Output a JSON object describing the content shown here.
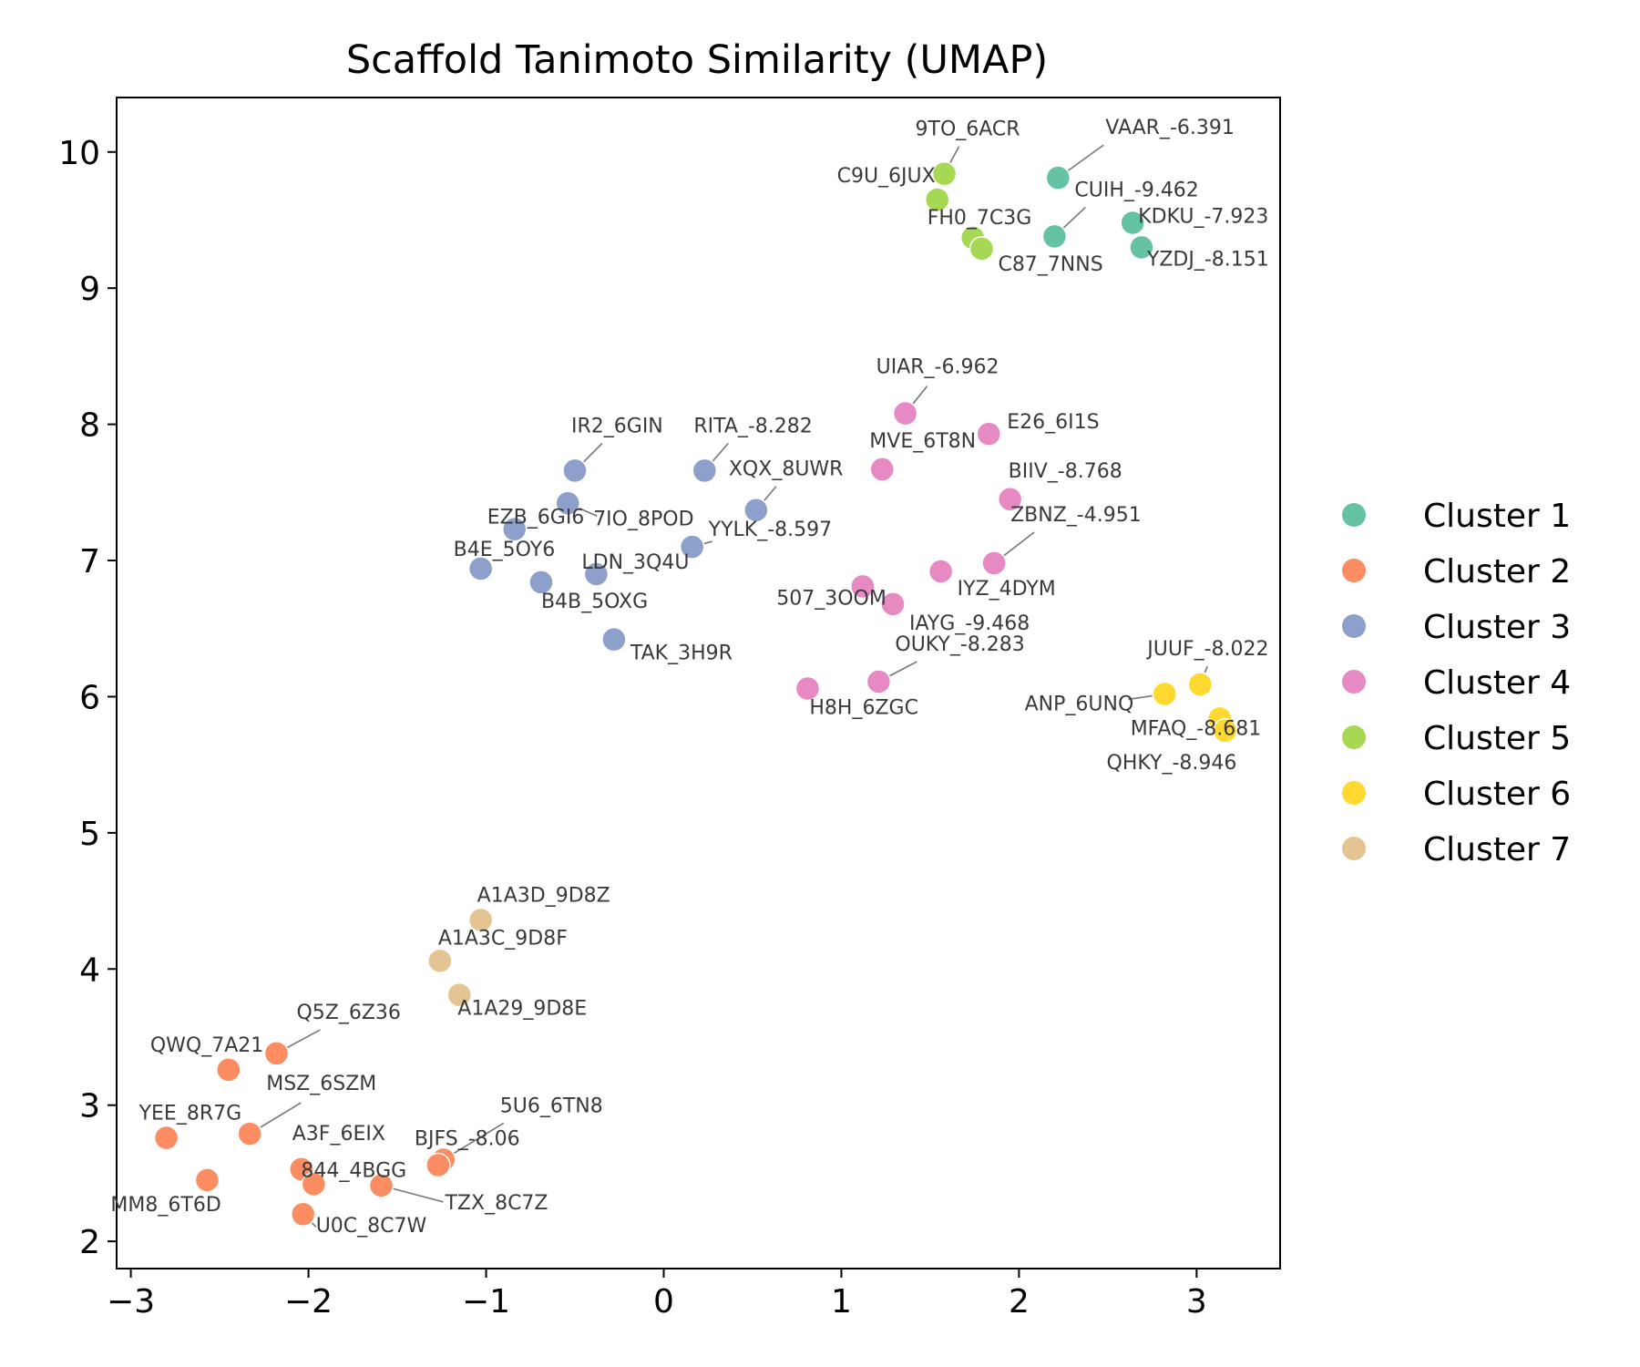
{
  "chart_data": {
    "type": "scatter",
    "title": "Scaffold Tanimoto Similarity (UMAP)",
    "xlabel": "",
    "ylabel": "",
    "xlim": [
      -3.08,
      3.47
    ],
    "ylim": [
      1.8,
      10.4
    ],
    "xticks": [
      -3,
      -2,
      -1,
      0,
      1,
      2,
      3
    ],
    "xtick_labels": [
      "−3",
      "−2",
      "−1",
      "0",
      "1",
      "2",
      "3"
    ],
    "yticks": [
      2,
      3,
      4,
      5,
      6,
      7,
      8,
      9,
      10
    ],
    "ytick_labels": [
      "2",
      "3",
      "4",
      "5",
      "6",
      "7",
      "8",
      "9",
      "10"
    ],
    "grid": false,
    "legend_position": "outside-right",
    "series": [
      {
        "name": "Cluster 1",
        "color": "#66c2a5",
        "points": [
          {
            "x": 2.22,
            "y": 9.81,
            "label": "VAAR_-6.391"
          },
          {
            "x": 2.2,
            "y": 9.38,
            "label": "CUIH_-9.462"
          },
          {
            "x": 2.64,
            "y": 9.48,
            "label": "KDKU_-7.923"
          },
          {
            "x": 2.69,
            "y": 9.3,
            "label": "YZDJ_-8.151"
          }
        ]
      },
      {
        "name": "Cluster 2",
        "color": "#fc8d62",
        "points": [
          {
            "x": -2.18,
            "y": 3.38,
            "label": "Q5Z_6Z36"
          },
          {
            "x": -2.45,
            "y": 3.26,
            "label": "QWQ_7A21"
          },
          {
            "x": -2.33,
            "y": 2.79,
            "label": "MSZ_6SZM"
          },
          {
            "x": -2.8,
            "y": 2.76,
            "label": "YEE_8R7G"
          },
          {
            "x": -2.57,
            "y": 2.45,
            "label": "MM8_6T6D"
          },
          {
            "x": -2.04,
            "y": 2.53,
            "label": "A3F_6EIX"
          },
          {
            "x": -1.97,
            "y": 2.42,
            "label": "844_4BGG"
          },
          {
            "x": -2.03,
            "y": 2.2,
            "label": "U0C_8C7W"
          },
          {
            "x": -1.59,
            "y": 2.41,
            "label": "TZX_8C7Z"
          },
          {
            "x": -1.24,
            "y": 2.6,
            "label": "5U6_6TN8"
          },
          {
            "x": -1.27,
            "y": 2.56,
            "label": "BJFS_-8.06"
          }
        ]
      },
      {
        "name": "Cluster 3",
        "color": "#8da0cb",
        "points": [
          {
            "x": -0.5,
            "y": 7.66,
            "label": "IR2_6GIN"
          },
          {
            "x": 0.23,
            "y": 7.66,
            "label": "RITA_-8.282"
          },
          {
            "x": -0.54,
            "y": 7.42,
            "label": "7IO_8POD"
          },
          {
            "x": 0.52,
            "y": 7.37,
            "label": "XQX_8UWR"
          },
          {
            "x": -0.84,
            "y": 7.23,
            "label": "EZB_6GI6"
          },
          {
            "x": 0.16,
            "y": 7.1,
            "label": "YYLK_-8.597"
          },
          {
            "x": -1.03,
            "y": 6.94,
            "label": "B4E_5OY6"
          },
          {
            "x": -0.38,
            "y": 6.9,
            "label": "LDN_3Q4U"
          },
          {
            "x": -0.69,
            "y": 6.84,
            "label": "B4B_5OXG"
          },
          {
            "x": -0.28,
            "y": 6.42,
            "label": "TAK_3H9R"
          }
        ]
      },
      {
        "name": "Cluster 4",
        "color": "#e78ac3",
        "points": [
          {
            "x": 1.36,
            "y": 8.08,
            "label": "UIAR_-6.962"
          },
          {
            "x": 1.83,
            "y": 7.93,
            "label": "E26_6I1S"
          },
          {
            "x": 1.23,
            "y": 7.67,
            "label": "MVE_6T8N"
          },
          {
            "x": 1.95,
            "y": 7.45,
            "label": "BIIV_-8.768"
          },
          {
            "x": 1.86,
            "y": 6.98,
            "label": "ZBNZ_-4.951"
          },
          {
            "x": 1.56,
            "y": 6.92,
            "label": "IYZ_4DYM"
          },
          {
            "x": 1.12,
            "y": 6.81,
            "label": "507_3OOM"
          },
          {
            "x": 1.29,
            "y": 6.68,
            "label": "IAYG_-9.468"
          },
          {
            "x": 1.21,
            "y": 6.11,
            "label": "OUKY_-8.283"
          },
          {
            "x": 0.81,
            "y": 6.06,
            "label": "H8H_6ZGC"
          }
        ]
      },
      {
        "name": "Cluster 5",
        "color": "#a6d854",
        "points": [
          {
            "x": 1.58,
            "y": 9.84,
            "label": "9TO_6ACR"
          },
          {
            "x": 1.54,
            "y": 9.65,
            "label": "C9U_6JUX"
          },
          {
            "x": 1.74,
            "y": 9.37,
            "label": "FH0_7C3G"
          },
          {
            "x": 1.79,
            "y": 9.29,
            "label": "C87_7NNS"
          }
        ]
      },
      {
        "name": "Cluster 6",
        "color": "#ffd92f",
        "points": [
          {
            "x": 3.02,
            "y": 6.09,
            "label": "JUUF_-8.022"
          },
          {
            "x": 2.82,
            "y": 6.02,
            "label": "ANP_6UNQ"
          },
          {
            "x": 3.13,
            "y": 5.84,
            "label": "MFAQ_-8.681"
          },
          {
            "x": 3.16,
            "y": 5.75,
            "label": "QHKY_-8.946"
          }
        ]
      },
      {
        "name": "Cluster 7",
        "color": "#e5c494",
        "points": [
          {
            "x": -1.03,
            "y": 4.36,
            "label": "A1A3D_9D8Z"
          },
          {
            "x": -1.26,
            "y": 4.06,
            "label": "A1A3C_9D8F"
          },
          {
            "x": -1.15,
            "y": 3.81,
            "label": "A1A29_9D8E"
          }
        ]
      }
    ]
  }
}
